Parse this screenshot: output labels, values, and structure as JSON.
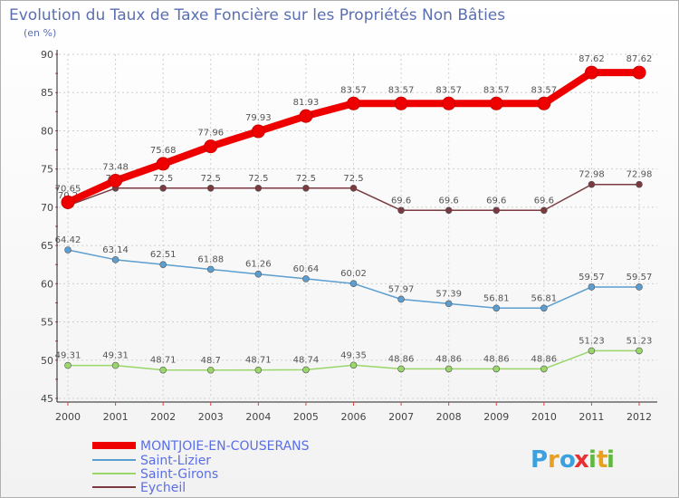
{
  "chart_data": {
    "type": "line",
    "title": "Evolution du Taux de Taxe Foncière sur les Propriétés Non Bâties",
    "ylabel": "(en %)",
    "xlabel": "",
    "ylim": [
      45,
      90
    ],
    "yticks": [
      45,
      50,
      55,
      60,
      65,
      70,
      75,
      80,
      85,
      90
    ],
    "categories": [
      "2000",
      "2001",
      "2002",
      "2003",
      "2004",
      "2005",
      "2006",
      "2007",
      "2008",
      "2009",
      "2010",
      "2011",
      "2012"
    ],
    "series": [
      {
        "name": "MONTJOIE-EN-COUSERANS",
        "key": "montjoie",
        "color": "#ee0000",
        "values": [
          70.65,
          73.48,
          75.68,
          77.96,
          79.93,
          81.93,
          83.57,
          83.57,
          83.57,
          83.57,
          83.57,
          87.62,
          87.62
        ],
        "labels": [
          "70.65",
          "73.48",
          "75.68",
          "77.96",
          "79.93",
          "81.93",
          "83.57",
          "83.57",
          "83.57",
          "83.57",
          "83.57",
          "87.62",
          "87.62"
        ]
      },
      {
        "name": "Saint-Lizier",
        "key": "saint-lizier",
        "color": "#5b9ecf",
        "values": [
          64.42,
          63.14,
          62.51,
          61.88,
          61.26,
          60.64,
          60.02,
          57.97,
          57.39,
          56.81,
          56.81,
          59.57,
          59.57
        ],
        "labels": [
          "64.42",
          "63.14",
          "62.51",
          "61.88",
          "61.26",
          "60.64",
          "60.02",
          "57.97",
          "57.39",
          "56.81",
          "56.81",
          "59.57",
          "59.57"
        ]
      },
      {
        "name": "Saint-Girons",
        "key": "saint-girons",
        "color": "#9ad66a",
        "values": [
          49.31,
          49.31,
          48.71,
          48.7,
          48.71,
          48.74,
          49.35,
          48.86,
          48.86,
          48.86,
          48.86,
          51.23,
          51.23
        ],
        "labels": [
          "49.31",
          "49.31",
          "48.71",
          "48.7",
          "48.71",
          "48.74",
          "49.35",
          "48.86",
          "48.86",
          "48.86",
          "48.86",
          "51.23",
          "51.23"
        ]
      },
      {
        "name": "Eycheil",
        "key": "eycheil",
        "color": "#7a3a40",
        "values": [
          70.2,
          72.5,
          72.5,
          72.5,
          72.5,
          72.5,
          72.5,
          69.6,
          69.6,
          69.6,
          69.6,
          72.98,
          72.98
        ],
        "labels": [
          "70.2",
          "72.5",
          "72.5",
          "72.5",
          "72.5",
          "72.5",
          "72.5",
          "69.6",
          "69.6",
          "69.6",
          "69.6",
          "72.98",
          "72.98"
        ]
      }
    ],
    "legend": "bottom-left"
  },
  "branding": {
    "logo_text": "Proxiti",
    "logo_letters": [
      "P",
      "r",
      "o",
      "x",
      "i",
      "t",
      "i"
    ],
    "logo_colors": [
      "#3aa0e0",
      "#e8a020",
      "#3aa0e0",
      "#e83030",
      "#60b840",
      "#e8a020",
      "#60b840"
    ]
  }
}
